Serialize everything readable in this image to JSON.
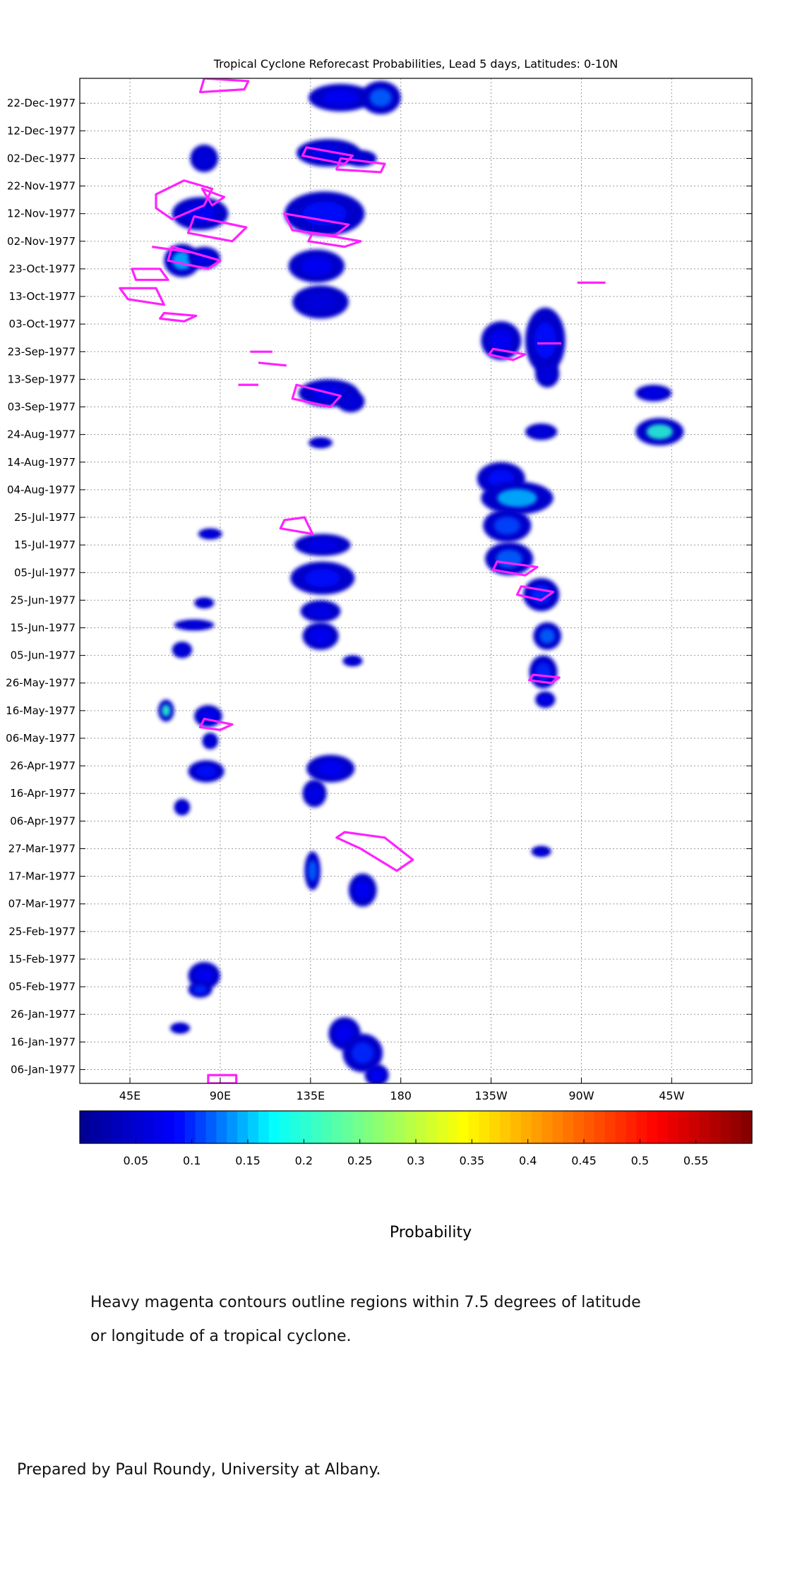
{
  "chart_data": {
    "type": "heatmap",
    "title": "Tropical Cyclone Reforecast Probabilities, Lead 5 days, Latitudes: 0-10N",
    "x_ticks": [
      "45E",
      "90E",
      "135E",
      "180",
      "135W",
      "90W",
      "45W"
    ],
    "x_tick_values": [
      45,
      90,
      135,
      180,
      225,
      270,
      315
    ],
    "xlim": [
      20,
      355
    ],
    "y_ticks": [
      "22-Dec-1977",
      "12-Dec-1977",
      "02-Dec-1977",
      "22-Nov-1977",
      "12-Nov-1977",
      "02-Nov-1977",
      "23-Oct-1977",
      "13-Oct-1977",
      "03-Oct-1977",
      "23-Sep-1977",
      "13-Sep-1977",
      "03-Sep-1977",
      "24-Aug-1977",
      "14-Aug-1977",
      "04-Aug-1977",
      "25-Jul-1977",
      "15-Jul-1977",
      "05-Jul-1977",
      "25-Jun-1977",
      "15-Jun-1977",
      "05-Jun-1977",
      "26-May-1977",
      "16-May-1977",
      "06-May-1977",
      "26-Apr-1977",
      "16-Apr-1977",
      "06-Apr-1977",
      "27-Mar-1977",
      "17-Mar-1977",
      "07-Mar-1977",
      "25-Feb-1977",
      "15-Feb-1977",
      "05-Feb-1977",
      "26-Jan-1977",
      "16-Jan-1977",
      "06-Jan-1977"
    ],
    "y_tick_days": [
      356,
      346,
      336,
      326,
      316,
      306,
      296,
      286,
      276,
      266,
      256,
      246,
      236,
      226,
      216,
      206,
      196,
      186,
      176,
      166,
      156,
      146,
      136,
      126,
      116,
      106,
      96,
      86,
      76,
      66,
      56,
      46,
      36,
      26,
      16,
      6
    ],
    "ylim": [
      1,
      365
    ],
    "grid": true,
    "colorbar": {
      "label": "Probability",
      "ticks": [
        "0.05",
        "0.1",
        "0.15",
        "0.2",
        "0.25",
        "0.3",
        "0.35",
        "0.4",
        "0.45",
        "0.5",
        "0.55"
      ],
      "tick_values": [
        0.05,
        0.1,
        0.15,
        0.2,
        0.25,
        0.3,
        0.35,
        0.4,
        0.45,
        0.5,
        0.55
      ],
      "range": [
        0,
        0.6
      ],
      "colors": [
        "#000090",
        "#0000ff",
        "#00ffff",
        "#7fff7f",
        "#ffff00",
        "#ff7f00",
        "#ff0000",
        "#800000"
      ]
    },
    "probability_regions": [
      {
        "lon": 150,
        "day": 358,
        "rx": 16,
        "ry": 5,
        "p": 0.08
      },
      {
        "lon": 170,
        "day": 358,
        "rx": 10,
        "ry": 6,
        "p": 0.12
      },
      {
        "lon": 82,
        "day": 336,
        "rx": 7,
        "ry": 5,
        "p": 0.06
      },
      {
        "lon": 144,
        "day": 338,
        "rx": 16,
        "ry": 5,
        "p": 0.07
      },
      {
        "lon": 160,
        "day": 336,
        "rx": 8,
        "ry": 3,
        "p": 0.05
      },
      {
        "lon": 80,
        "day": 316,
        "rx": 14,
        "ry": 6,
        "p": 0.08
      },
      {
        "lon": 142,
        "day": 316,
        "rx": 20,
        "ry": 8,
        "p": 0.09
      },
      {
        "lon": 71,
        "day": 299,
        "rx": 9,
        "ry": 6,
        "p": 0.15
      },
      {
        "lon": 82,
        "day": 300,
        "rx": 8,
        "ry": 4,
        "p": 0.07
      },
      {
        "lon": 138,
        "day": 297,
        "rx": 14,
        "ry": 6,
        "p": 0.08
      },
      {
        "lon": 140,
        "day": 284,
        "rx": 14,
        "ry": 6,
        "p": 0.06
      },
      {
        "lon": 230,
        "day": 270,
        "rx": 10,
        "ry": 7,
        "p": 0.08
      },
      {
        "lon": 252,
        "day": 270,
        "rx": 10,
        "ry": 12,
        "p": 0.09
      },
      {
        "lon": 253,
        "day": 258,
        "rx": 6,
        "ry": 5,
        "p": 0.06
      },
      {
        "lon": 144,
        "day": 251,
        "rx": 15,
        "ry": 5,
        "p": 0.08
      },
      {
        "lon": 155,
        "day": 248,
        "rx": 7,
        "ry": 4,
        "p": 0.06
      },
      {
        "lon": 250,
        "day": 237,
        "rx": 8,
        "ry": 3,
        "p": 0.06
      },
      {
        "lon": 306,
        "day": 251,
        "rx": 9,
        "ry": 3,
        "p": 0.07
      },
      {
        "lon": 309,
        "day": 237,
        "rx": 12,
        "ry": 5,
        "p": 0.2
      },
      {
        "lon": 140,
        "day": 233,
        "rx": 6,
        "ry": 2,
        "p": 0.05
      },
      {
        "lon": 230,
        "day": 220,
        "rx": 12,
        "ry": 6,
        "p": 0.09
      },
      {
        "lon": 238,
        "day": 213,
        "rx": 18,
        "ry": 6,
        "p": 0.15
      },
      {
        "lon": 233,
        "day": 203,
        "rx": 12,
        "ry": 6,
        "p": 0.11
      },
      {
        "lon": 141,
        "day": 196,
        "rx": 14,
        "ry": 4,
        "p": 0.07
      },
      {
        "lon": 85,
        "day": 200,
        "rx": 6,
        "ry": 2,
        "p": 0.06
      },
      {
        "lon": 234,
        "day": 191,
        "rx": 12,
        "ry": 6,
        "p": 0.12
      },
      {
        "lon": 141,
        "day": 184,
        "rx": 16,
        "ry": 6,
        "p": 0.09
      },
      {
        "lon": 250,
        "day": 178,
        "rx": 9,
        "ry": 6,
        "p": 0.1
      },
      {
        "lon": 140,
        "day": 172,
        "rx": 10,
        "ry": 4,
        "p": 0.07
      },
      {
        "lon": 82,
        "day": 175,
        "rx": 5,
        "ry": 2,
        "p": 0.05
      },
      {
        "lon": 140,
        "day": 163,
        "rx": 9,
        "ry": 5,
        "p": 0.08
      },
      {
        "lon": 77,
        "day": 167,
        "rx": 10,
        "ry": 2,
        "p": 0.06
      },
      {
        "lon": 71,
        "day": 158,
        "rx": 5,
        "ry": 3,
        "p": 0.06
      },
      {
        "lon": 253,
        "day": 163,
        "rx": 7,
        "ry": 5,
        "p": 0.12
      },
      {
        "lon": 251,
        "day": 150,
        "rx": 7,
        "ry": 6,
        "p": 0.1
      },
      {
        "lon": 252,
        "day": 140,
        "rx": 5,
        "ry": 3,
        "p": 0.07
      },
      {
        "lon": 156,
        "day": 154,
        "rx": 5,
        "ry": 2,
        "p": 0.05
      },
      {
        "lon": 63,
        "day": 136,
        "rx": 4,
        "ry": 4,
        "p": 0.2
      },
      {
        "lon": 84,
        "day": 134,
        "rx": 7,
        "ry": 4,
        "p": 0.08
      },
      {
        "lon": 85,
        "day": 125,
        "rx": 4,
        "ry": 3,
        "p": 0.06
      },
      {
        "lon": 83,
        "day": 114,
        "rx": 9,
        "ry": 4,
        "p": 0.09
      },
      {
        "lon": 145,
        "day": 115,
        "rx": 12,
        "ry": 5,
        "p": 0.08
      },
      {
        "lon": 137,
        "day": 106,
        "rx": 6,
        "ry": 5,
        "p": 0.07
      },
      {
        "lon": 71,
        "day": 101,
        "rx": 4,
        "ry": 3,
        "p": 0.06
      },
      {
        "lon": 136,
        "day": 78,
        "rx": 4,
        "ry": 7,
        "p": 0.12
      },
      {
        "lon": 161,
        "day": 71,
        "rx": 7,
        "ry": 6,
        "p": 0.08
      },
      {
        "lon": 250,
        "day": 85,
        "rx": 5,
        "ry": 2,
        "p": 0.05
      },
      {
        "lon": 82,
        "day": 40,
        "rx": 8,
        "ry": 5,
        "p": 0.08
      },
      {
        "lon": 80,
        "day": 35,
        "rx": 6,
        "ry": 3,
        "p": 0.1
      },
      {
        "lon": 70,
        "day": 21,
        "rx": 5,
        "ry": 2,
        "p": 0.06
      },
      {
        "lon": 152,
        "day": 19,
        "rx": 8,
        "ry": 6,
        "p": 0.08
      },
      {
        "lon": 161,
        "day": 12,
        "rx": 10,
        "ry": 7,
        "p": 0.1
      },
      {
        "lon": 168,
        "day": 4,
        "rx": 6,
        "ry": 4,
        "p": 0.08
      }
    ],
    "tc_contours": [
      {
        "points": [
          [
            82,
            365
          ],
          [
            104,
            364
          ],
          [
            102,
            361
          ],
          [
            80,
            360
          ]
        ]
      },
      {
        "points": [
          [
            133,
            340
          ],
          [
            156,
            337
          ],
          [
            152,
            334
          ],
          [
            131,
            337
          ]
        ]
      },
      {
        "points": [
          [
            150,
            336
          ],
          [
            172,
            334
          ],
          [
            170,
            331
          ],
          [
            148,
            332
          ]
        ]
      },
      {
        "points": [
          [
            58,
            323
          ],
          [
            72,
            328
          ],
          [
            86,
            325
          ],
          [
            82,
            319
          ],
          [
            66,
            314
          ],
          [
            58,
            318
          ]
        ]
      },
      {
        "points": [
          [
            81,
            325
          ],
          [
            92,
            322
          ],
          [
            86,
            319
          ]
        ]
      },
      {
        "points": [
          [
            77,
            315
          ],
          [
            103,
            311
          ],
          [
            96,
            306
          ],
          [
            74,
            309
          ]
        ]
      },
      {
        "points": [
          [
            122,
            316
          ],
          [
            154,
            312
          ],
          [
            147,
            308
          ],
          [
            126,
            310
          ]
        ]
      },
      {
        "points": [
          [
            136,
            309
          ],
          [
            160,
            306
          ],
          [
            152,
            304
          ],
          [
            134,
            306
          ]
        ]
      },
      {
        "points": [
          [
            56,
            304
          ],
          [
            75,
            302
          ]
        ]
      },
      {
        "points": [
          [
            66,
            304
          ],
          [
            90,
            299
          ],
          [
            84,
            296
          ],
          [
            64,
            299
          ]
        ]
      },
      {
        "points": [
          [
            46,
            296
          ],
          [
            60,
            296
          ],
          [
            64,
            292
          ],
          [
            48,
            292
          ]
        ]
      },
      {
        "points": [
          [
            40,
            289
          ],
          [
            58,
            289
          ],
          [
            62,
            283
          ],
          [
            44,
            285
          ]
        ]
      },
      {
        "points": [
          [
            62,
            280
          ],
          [
            78,
            279
          ],
          [
            72,
            277
          ],
          [
            60,
            278
          ]
        ]
      },
      {
        "points": [
          [
            105,
            266
          ],
          [
            116,
            266
          ]
        ]
      },
      {
        "points": [
          [
            109,
            262
          ],
          [
            123,
            261
          ]
        ]
      },
      {
        "points": [
          [
            99,
            254
          ],
          [
            109,
            254
          ]
        ]
      },
      {
        "points": [
          [
            128,
            254
          ],
          [
            150,
            250
          ],
          [
            145,
            246
          ],
          [
            126,
            249
          ]
        ]
      },
      {
        "points": [
          [
            226,
            267
          ],
          [
            242,
            265
          ],
          [
            236,
            263
          ],
          [
            224,
            265
          ]
        ]
      },
      {
        "points": [
          [
            248,
            269
          ],
          [
            260,
            269
          ]
        ]
      },
      {
        "points": [
          [
            268,
            291
          ],
          [
            282,
            291
          ]
        ]
      },
      {
        "points": [
          [
            122,
            205
          ],
          [
            132,
            206
          ],
          [
            136,
            200
          ],
          [
            120,
            202
          ]
        ]
      },
      {
        "points": [
          [
            228,
            190
          ],
          [
            248,
            188
          ],
          [
            242,
            185
          ],
          [
            226,
            187
          ]
        ]
      },
      {
        "points": [
          [
            240,
            181
          ],
          [
            256,
            179
          ],
          [
            250,
            176
          ],
          [
            238,
            178
          ]
        ]
      },
      {
        "points": [
          [
            246,
            149
          ],
          [
            259,
            148
          ],
          [
            255,
            146
          ],
          [
            244,
            147
          ]
        ]
      },
      {
        "points": [
          [
            82,
            133
          ],
          [
            96,
            131
          ],
          [
            90,
            129
          ],
          [
            80,
            130
          ]
        ]
      },
      {
        "points": [
          [
            152,
            92
          ],
          [
            172,
            90
          ],
          [
            186,
            82
          ],
          [
            178,
            78
          ],
          [
            160,
            86
          ],
          [
            148,
            90
          ]
        ]
      },
      {
        "points": [
          [
            84,
            4
          ],
          [
            98,
            4
          ],
          [
            98,
            1
          ],
          [
            84,
            1
          ]
        ]
      }
    ]
  },
  "caption_line1": "Heavy magenta contours outline regions within 7.5 degrees of latitude",
  "caption_line2": "or longitude of a tropical cyclone.",
  "prepared_by": "Prepared by Paul Roundy, University at Albany.",
  "colors": {
    "contour": "#ff22ff",
    "grid": "#9a9a9a"
  }
}
